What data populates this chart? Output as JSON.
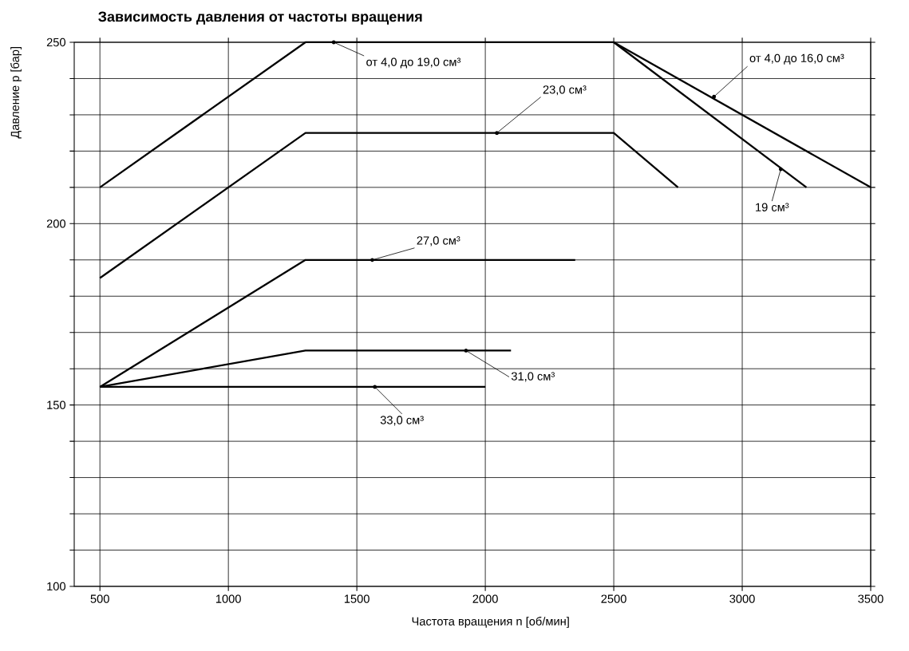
{
  "chart_data": {
    "type": "line",
    "title": "Зависимость давления от частоты вращения",
    "xlabel": "Частота вращения n [об/мин]",
    "ylabel": "Давление p [бар]",
    "xlim": [
      400,
      3500
    ],
    "ylim": [
      100,
      250
    ],
    "xticks": [
      500,
      1000,
      1500,
      2000,
      2500,
      3000,
      3500
    ],
    "yticks": [
      100,
      {
        "value": 110,
        "label": null
      },
      {
        "value": 120,
        "label": null
      },
      {
        "value": 130,
        "label": null
      },
      {
        "value": 140,
        "label": null
      },
      150,
      {
        "value": 160,
        "label": null
      },
      {
        "value": 170,
        "label": null
      },
      {
        "value": 180,
        "label": null
      },
      {
        "value": 190,
        "label": null
      },
      200,
      {
        "value": 210,
        "label": null
      },
      {
        "value": 220,
        "label": null
      },
      {
        "value": 230,
        "label": null
      },
      {
        "value": 240,
        "label": null
      },
      250
    ],
    "grid": true,
    "line_style": "solid",
    "series": [
      {
        "color": "#000000",
        "x": [
          500,
          1300,
          2500
        ],
        "values": [
          210,
          250,
          250
        ]
      },
      {
        "color": "#000000",
        "x": [
          2500,
          3500
        ],
        "values": [
          250,
          210
        ]
      },
      {
        "color": "#000000",
        "x": [
          2500,
          3250
        ],
        "values": [
          250,
          210
        ]
      },
      {
        "color": "#000000",
        "x": [
          500,
          1300,
          2500,
          2750
        ],
        "values": [
          185,
          225,
          225,
          210
        ]
      },
      {
        "color": "#000000",
        "x": [
          500,
          1300,
          2350
        ],
        "values": [
          155,
          190,
          190
        ]
      },
      {
        "color": "#000000",
        "x": [
          500,
          1300,
          2100
        ],
        "values": [
          155,
          165,
          165
        ]
      },
      {
        "color": "#000000",
        "x": [
          500,
          2000
        ],
        "values": [
          155,
          155
        ]
      }
    ],
    "annotations": [
      {
        "text": "от 4,0 до 19,0 см³",
        "x": 1410,
        "y": 250
      },
      {
        "text": "23,0 см³",
        "x": 2045,
        "y": 225
      },
      {
        "text": "от 4,0 до 16,0 см³",
        "x": 2890,
        "y": 235
      },
      {
        "text": "19 см³",
        "x": 3150,
        "y": 215
      },
      {
        "text": "27,0 см³",
        "x": 1560,
        "y": 190
      },
      {
        "text": "31,0 см³",
        "x": 1925,
        "y": 165
      },
      {
        "text": "33,0 см³",
        "x": 1570,
        "y": 155
      }
    ]
  }
}
